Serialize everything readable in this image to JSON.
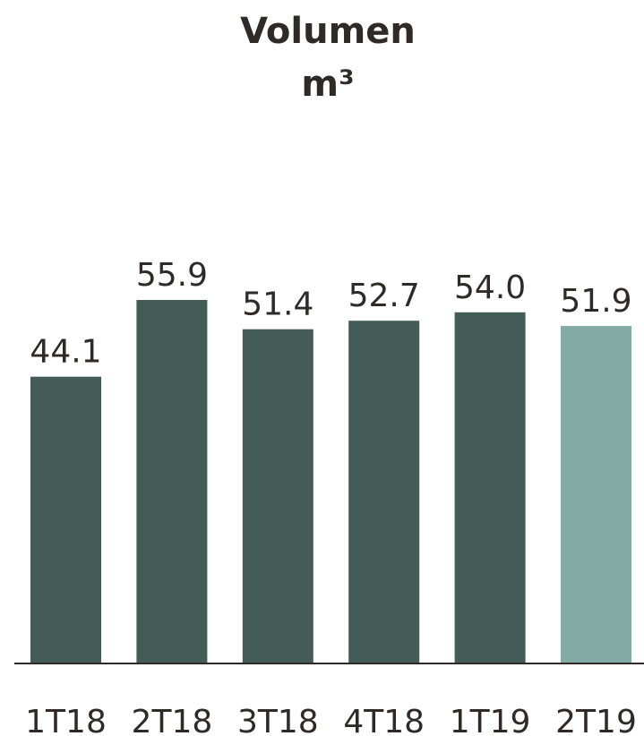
{
  "chart_data": {
    "type": "bar",
    "title": "Volumen",
    "subtitle": "m³",
    "categories": [
      "1T18",
      "2T18",
      "3T18",
      "4T18",
      "1T19",
      "2T19"
    ],
    "values": [
      44.1,
      55.9,
      51.4,
      52.7,
      54.0,
      51.9
    ],
    "value_labels": [
      "44.1",
      "55.9",
      "51.4",
      "52.7",
      "54.0",
      "51.9"
    ],
    "ylim": [
      0,
      55.9
    ],
    "grid": false,
    "legend": "none",
    "colors": {
      "bar": "#445c58",
      "bar_highlight": "#84aaa6",
      "baseline": "#2f2a26",
      "text": "#2f2a26"
    },
    "highlight_index": 5
  }
}
